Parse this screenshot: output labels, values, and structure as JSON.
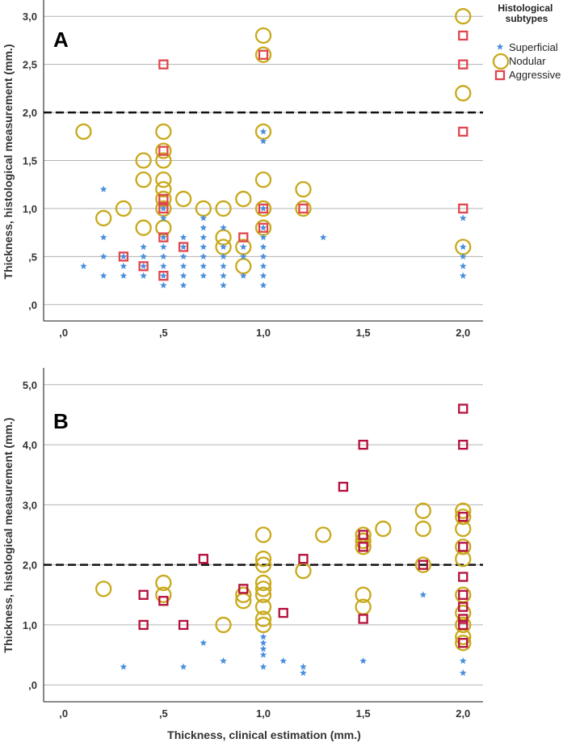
{
  "chart_data": [
    {
      "type": "scatter",
      "panel_label": "A",
      "xlabel": "",
      "ylabel": "Thickness, histological measurement (mm.)",
      "xlim": [
        -0.1,
        2.1
      ],
      "ylim": [
        -0.17,
        3.17
      ],
      "x_ticks": [
        ",0",
        ",5",
        "1,0",
        "1,5",
        "2,0"
      ],
      "y_ticks": [
        ",0",
        ",5",
        "1,0",
        "1,5",
        "2,0",
        "2,5",
        "3,0"
      ],
      "reference_line": 2.0,
      "grid": true,
      "legend": {
        "title": "Histological subtypes",
        "placement": "right",
        "entries": [
          "Superficial",
          "Nodular",
          "Aggressive"
        ]
      },
      "series": [
        {
          "name": "Superficial",
          "color": "#4a8fdb",
          "marker": "star",
          "points": [
            [
              0.1,
              0.4
            ],
            [
              0.2,
              1.2
            ],
            [
              0.2,
              0.7
            ],
            [
              0.2,
              0.5
            ],
            [
              0.2,
              0.3
            ],
            [
              0.3,
              0.5
            ],
            [
              0.3,
              0.4
            ],
            [
              0.3,
              0.3
            ],
            [
              0.4,
              0.6
            ],
            [
              0.4,
              0.5
            ],
            [
              0.4,
              0.4
            ],
            [
              0.4,
              0.3
            ],
            [
              0.5,
              1.0
            ],
            [
              0.5,
              0.9
            ],
            [
              0.5,
              0.7
            ],
            [
              0.5,
              0.6
            ],
            [
              0.5,
              0.5
            ],
            [
              0.5,
              0.4
            ],
            [
              0.5,
              0.3
            ],
            [
              0.5,
              0.2
            ],
            [
              0.6,
              0.7
            ],
            [
              0.6,
              0.6
            ],
            [
              0.6,
              0.5
            ],
            [
              0.6,
              0.4
            ],
            [
              0.6,
              0.3
            ],
            [
              0.6,
              0.2
            ],
            [
              0.7,
              0.9
            ],
            [
              0.7,
              0.8
            ],
            [
              0.7,
              0.7
            ],
            [
              0.7,
              0.6
            ],
            [
              0.7,
              0.5
            ],
            [
              0.7,
              0.4
            ],
            [
              0.7,
              0.3
            ],
            [
              0.8,
              0.8
            ],
            [
              0.8,
              0.6
            ],
            [
              0.8,
              0.5
            ],
            [
              0.8,
              0.4
            ],
            [
              0.8,
              0.3
            ],
            [
              0.8,
              0.2
            ],
            [
              0.9,
              0.6
            ],
            [
              0.9,
              0.5
            ],
            [
              0.9,
              0.3
            ],
            [
              1.0,
              1.8
            ],
            [
              1.0,
              1.7
            ],
            [
              1.0,
              1.0
            ],
            [
              1.0,
              0.8
            ],
            [
              1.0,
              0.7
            ],
            [
              1.0,
              0.6
            ],
            [
              1.0,
              0.5
            ],
            [
              1.0,
              0.4
            ],
            [
              1.0,
              0.3
            ],
            [
              1.0,
              0.2
            ],
            [
              1.3,
              0.7
            ],
            [
              2.0,
              0.9
            ],
            [
              2.0,
              0.6
            ],
            [
              2.0,
              0.5
            ],
            [
              2.0,
              0.4
            ],
            [
              2.0,
              0.3
            ]
          ]
        },
        {
          "name": "Nodular",
          "color": "#c9a91c",
          "marker": "circle",
          "points": [
            [
              0.1,
              1.8
            ],
            [
              0.2,
              0.9
            ],
            [
              0.3,
              1.0
            ],
            [
              0.4,
              1.5
            ],
            [
              0.4,
              1.3
            ],
            [
              0.4,
              0.8
            ],
            [
              0.5,
              1.8
            ],
            [
              0.5,
              1.6
            ],
            [
              0.5,
              1.5
            ],
            [
              0.5,
              1.3
            ],
            [
              0.5,
              1.2
            ],
            [
              0.5,
              1.1
            ],
            [
              0.5,
              1.0
            ],
            [
              0.5,
              0.8
            ],
            [
              0.6,
              1.1
            ],
            [
              0.7,
              1.0
            ],
            [
              0.8,
              1.0
            ],
            [
              0.8,
              0.7
            ],
            [
              0.8,
              0.6
            ],
            [
              0.9,
              1.1
            ],
            [
              0.9,
              0.6
            ],
            [
              0.9,
              0.4
            ],
            [
              1.0,
              2.8
            ],
            [
              1.0,
              2.6
            ],
            [
              1.0,
              1.8
            ],
            [
              1.0,
              1.3
            ],
            [
              1.0,
              1.0
            ],
            [
              1.0,
              0.8
            ],
            [
              1.2,
              1.2
            ],
            [
              1.2,
              1.0
            ],
            [
              2.0,
              3.0
            ],
            [
              2.0,
              2.2
            ],
            [
              2.0,
              0.6
            ]
          ]
        },
        {
          "name": "Aggressive",
          "color": "#e0464e",
          "marker": "square",
          "points": [
            [
              0.3,
              0.5
            ],
            [
              0.4,
              0.4
            ],
            [
              0.5,
              2.5
            ],
            [
              0.5,
              1.6
            ],
            [
              0.5,
              1.1
            ],
            [
              0.5,
              1.0
            ],
            [
              0.5,
              0.7
            ],
            [
              0.5,
              0.3
            ],
            [
              0.6,
              0.6
            ],
            [
              0.9,
              0.7
            ],
            [
              1.0,
              2.6
            ],
            [
              1.0,
              1.0
            ],
            [
              1.0,
              0.8
            ],
            [
              1.2,
              1.0
            ],
            [
              2.0,
              2.8
            ],
            [
              2.0,
              2.5
            ],
            [
              2.0,
              1.8
            ],
            [
              2.0,
              1.0
            ]
          ]
        }
      ]
    },
    {
      "type": "scatter",
      "panel_label": "B",
      "xlabel": "Thickness, clinical estimation (mm.)",
      "ylabel": "Thickness, histological measurement (mm.)",
      "xlim": [
        -0.1,
        2.1
      ],
      "ylim": [
        -0.28,
        5.28
      ],
      "x_ticks": [
        ",0",
        ",5",
        "1,0",
        "1,5",
        "2,0"
      ],
      "y_ticks": [
        ",0",
        "1,0",
        "2,0",
        "3,0",
        "4,0",
        "5,0"
      ],
      "reference_line": 2.0,
      "grid": true,
      "series": [
        {
          "name": "Superficial",
          "color": "#4a8fdb",
          "marker": "star",
          "points": [
            [
              0.3,
              0.3
            ],
            [
              0.6,
              0.3
            ],
            [
              0.7,
              0.7
            ],
            [
              0.8,
              0.4
            ],
            [
              1.0,
              0.8
            ],
            [
              1.0,
              0.7
            ],
            [
              1.0,
              0.6
            ],
            [
              1.0,
              0.5
            ],
            [
              1.0,
              0.3
            ],
            [
              1.1,
              0.4
            ],
            [
              1.2,
              0.3
            ],
            [
              1.2,
              0.2
            ],
            [
              1.5,
              0.4
            ],
            [
              1.8,
              1.5
            ],
            [
              2.0,
              0.4
            ],
            [
              2.0,
              0.2
            ]
          ]
        },
        {
          "name": "Nodular",
          "color": "#c9a91c",
          "marker": "circle",
          "points": [
            [
              0.2,
              1.6
            ],
            [
              0.5,
              1.7
            ],
            [
              0.5,
              1.5
            ],
            [
              0.8,
              1.0
            ],
            [
              0.9,
              1.5
            ],
            [
              0.9,
              1.4
            ],
            [
              1.0,
              2.5
            ],
            [
              1.0,
              2.1
            ],
            [
              1.0,
              2.0
            ],
            [
              1.0,
              1.7
            ],
            [
              1.0,
              1.6
            ],
            [
              1.0,
              1.5
            ],
            [
              1.0,
              1.3
            ],
            [
              1.0,
              1.1
            ],
            [
              1.0,
              1.0
            ],
            [
              1.2,
              1.9
            ],
            [
              1.3,
              2.5
            ],
            [
              1.5,
              2.5
            ],
            [
              1.5,
              2.4
            ],
            [
              1.5,
              2.3
            ],
            [
              1.5,
              1.5
            ],
            [
              1.5,
              1.3
            ],
            [
              1.6,
              2.6
            ],
            [
              1.8,
              2.9
            ],
            [
              1.8,
              2.6
            ],
            [
              1.8,
              2.0
            ],
            [
              2.0,
              2.9
            ],
            [
              2.0,
              2.8
            ],
            [
              2.0,
              2.6
            ],
            [
              2.0,
              2.3
            ],
            [
              2.0,
              2.1
            ],
            [
              2.0,
              1.5
            ],
            [
              2.0,
              1.2
            ],
            [
              2.0,
              1.0
            ],
            [
              2.0,
              0.8
            ],
            [
              2.0,
              0.7
            ]
          ]
        },
        {
          "name": "Aggressive",
          "color": "#b5103c",
          "marker": "square",
          "points": [
            [
              0.4,
              1.5
            ],
            [
              0.4,
              1.0
            ],
            [
              0.5,
              1.4
            ],
            [
              0.6,
              1.0
            ],
            [
              0.7,
              2.1
            ],
            [
              0.9,
              1.6
            ],
            [
              1.1,
              1.2
            ],
            [
              1.2,
              2.1
            ],
            [
              1.4,
              3.3
            ],
            [
              1.5,
              4.0
            ],
            [
              1.5,
              2.5
            ],
            [
              1.5,
              2.3
            ],
            [
              1.5,
              1.1
            ],
            [
              1.8,
              2.0
            ],
            [
              2.0,
              4.6
            ],
            [
              2.0,
              4.0
            ],
            [
              2.0,
              2.8
            ],
            [
              2.0,
              2.3
            ],
            [
              2.0,
              1.8
            ],
            [
              2.0,
              1.5
            ],
            [
              2.0,
              1.3
            ],
            [
              2.0,
              1.1
            ],
            [
              2.0,
              1.0
            ],
            [
              2.0,
              0.7
            ]
          ]
        }
      ]
    }
  ]
}
